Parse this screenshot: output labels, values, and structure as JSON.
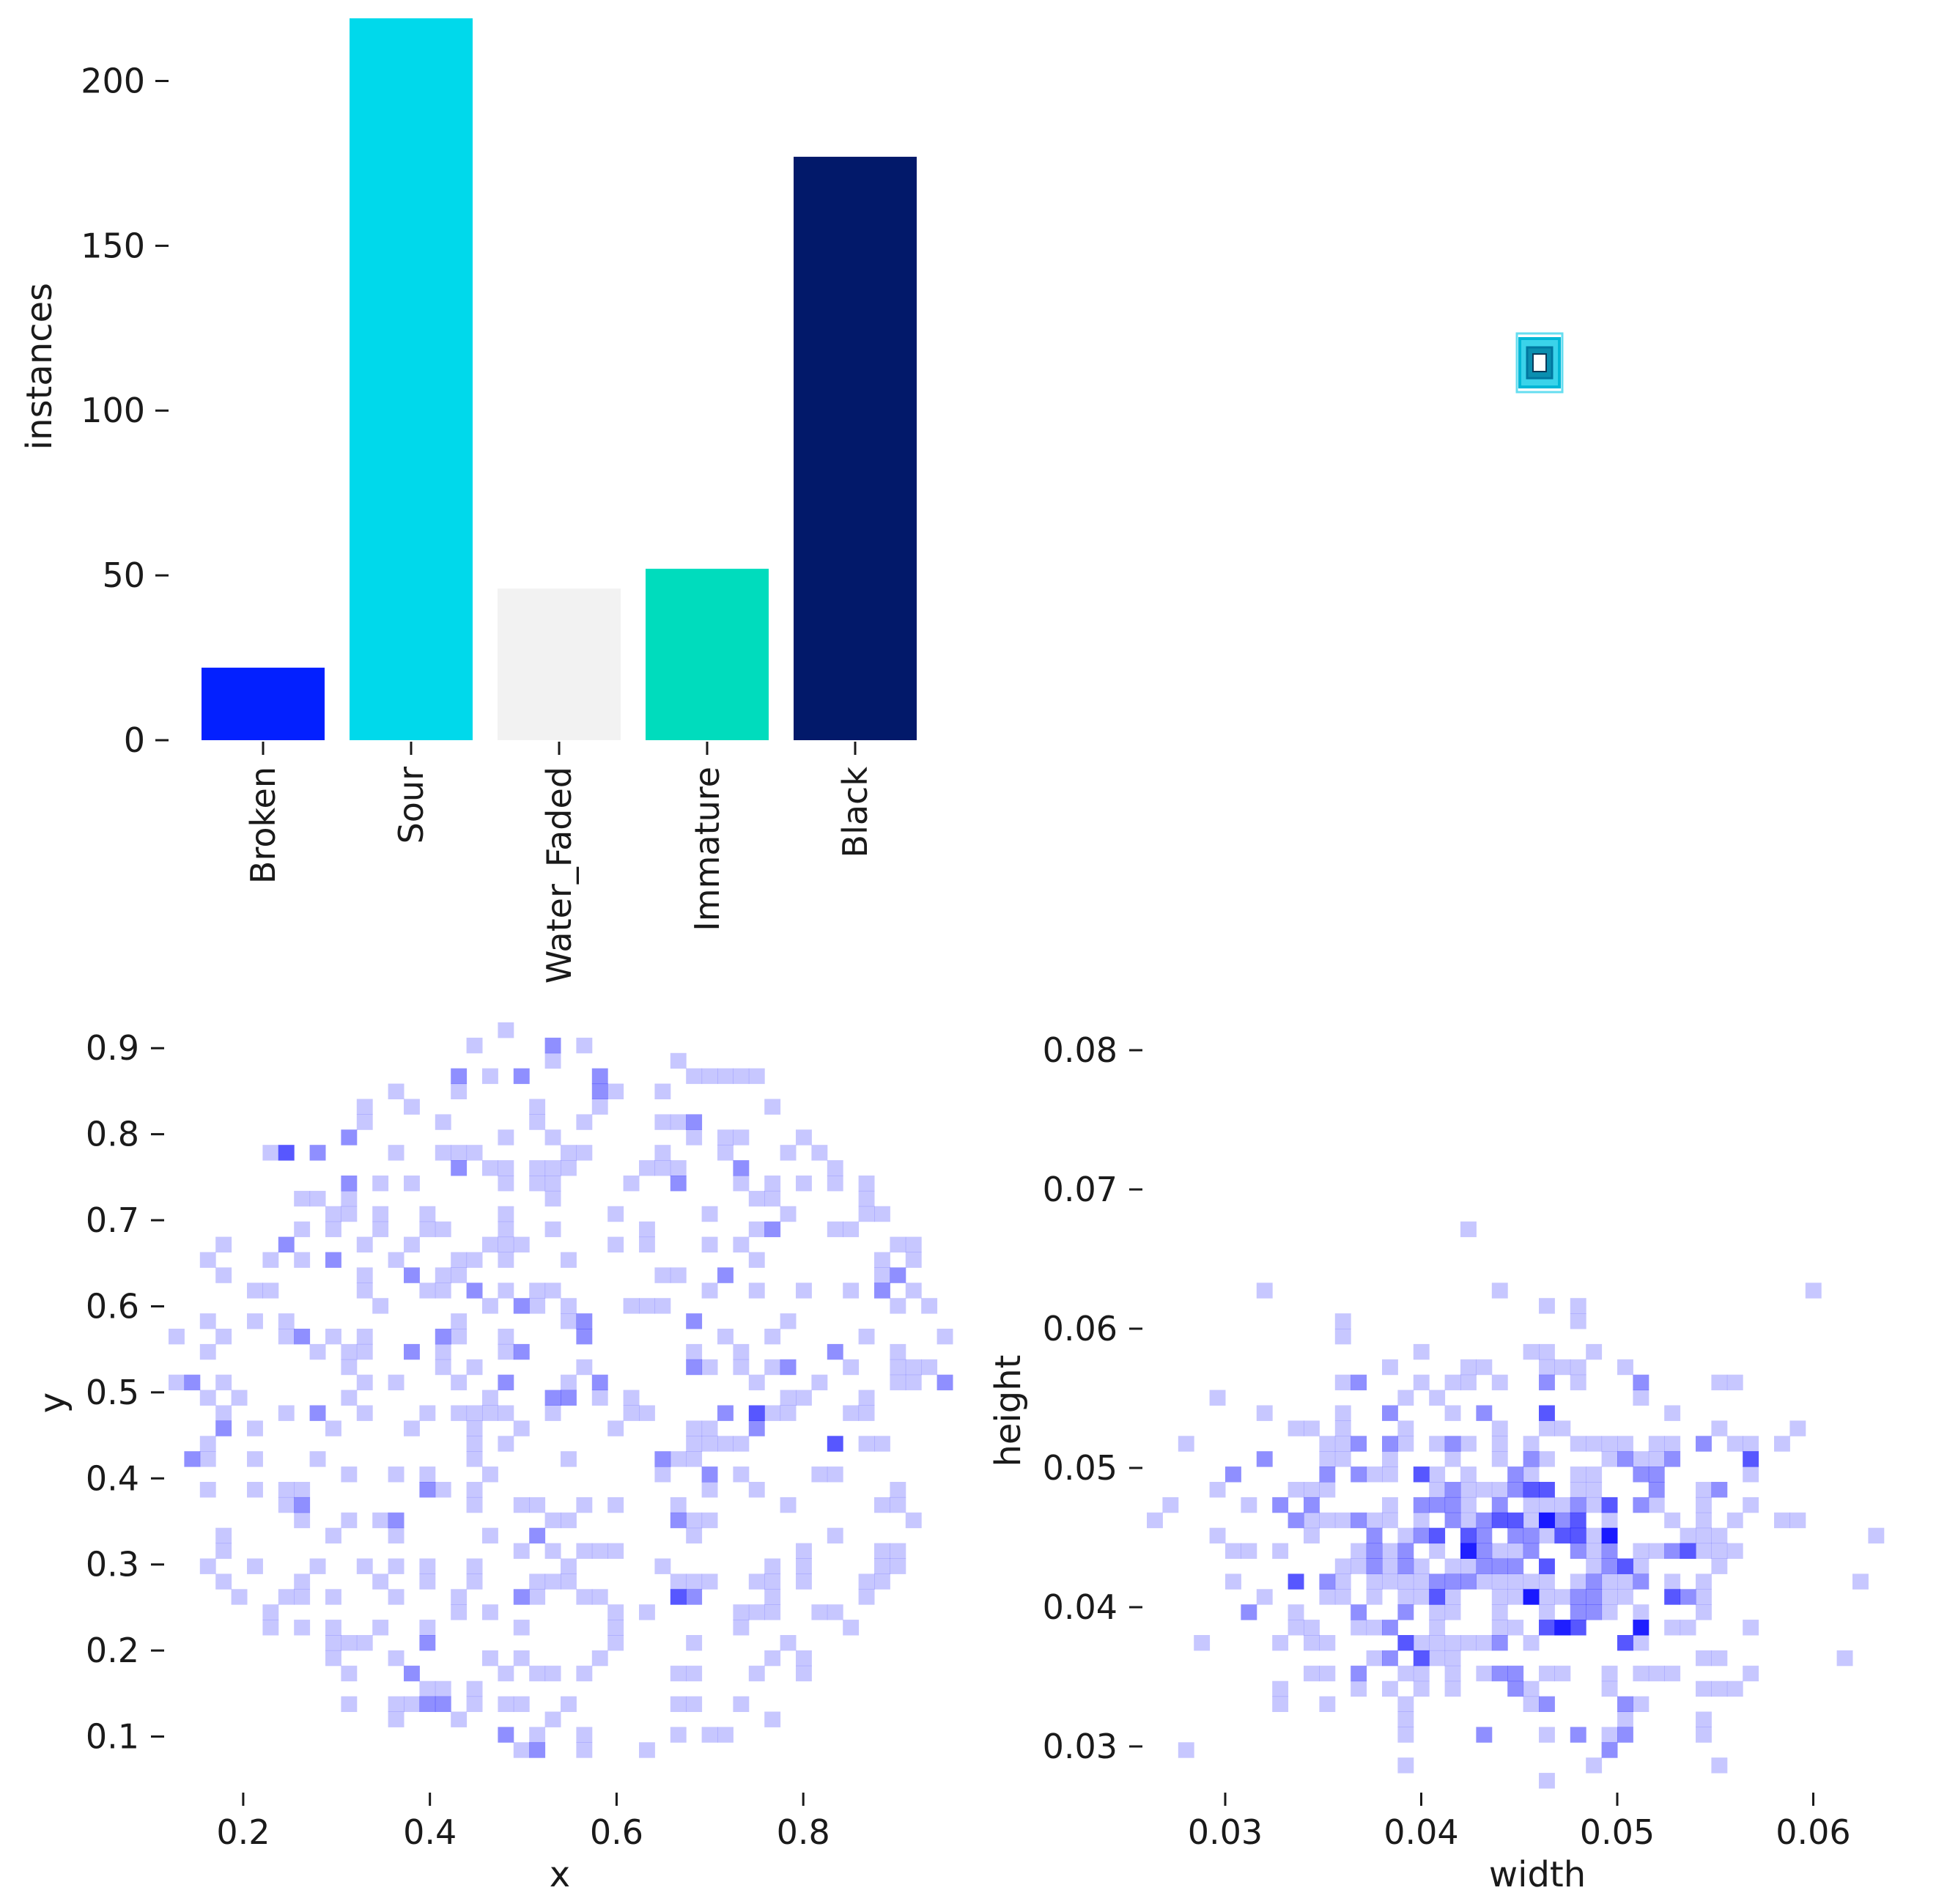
{
  "chart_data": [
    {
      "type": "bar",
      "categories": [
        "Broken",
        "Sour",
        "Water_Faded",
        "Immature",
        "Black"
      ],
      "values": [
        22,
        219,
        46,
        52,
        177
      ],
      "colors": [
        "#0320ff",
        "#00d9eb",
        "#f2f2f2",
        "#00dcbd",
        "#02196a"
      ],
      "title": "",
      "xlabel": "",
      "ylabel": "instances",
      "ylim": [
        0,
        219
      ],
      "yticks": [
        0,
        50,
        100,
        150,
        200
      ]
    },
    {
      "type": "box-overlay",
      "title": "",
      "note": "",
      "outline_color": "#00c8e6"
    },
    {
      "type": "heatmap",
      "xlabel": "x",
      "ylabel": "y",
      "xlim": [
        0.12,
        0.96
      ],
      "ylim": [
        0.04,
        0.93
      ],
      "xticks": [
        0.2,
        0.4,
        0.6,
        0.8
      ],
      "yticks": [
        0.1,
        0.2,
        0.3,
        0.4,
        0.5,
        0.6,
        0.7,
        0.8,
        0.9
      ],
      "bins": [
        50,
        50
      ],
      "color": "#0000ff",
      "seed": 7
    },
    {
      "type": "heatmap",
      "xlabel": "width",
      "ylabel": "height",
      "xlim": [
        0.026,
        0.066
      ],
      "ylim": [
        0.027,
        0.082
      ],
      "xticks": [
        0.03,
        0.04,
        0.05,
        0.06
      ],
      "xtick_labels": [
        "0.03",
        "0.04",
        "0.05",
        "0.06"
      ],
      "yticks": [
        0.03,
        0.04,
        0.05,
        0.06,
        0.07,
        0.08
      ],
      "ytick_labels": [
        "0.03",
        "0.04",
        "0.05",
        "0.06",
        "0.07",
        "0.08"
      ],
      "bins": [
        50,
        50
      ],
      "color": "#0000ff",
      "seed": 13
    }
  ]
}
